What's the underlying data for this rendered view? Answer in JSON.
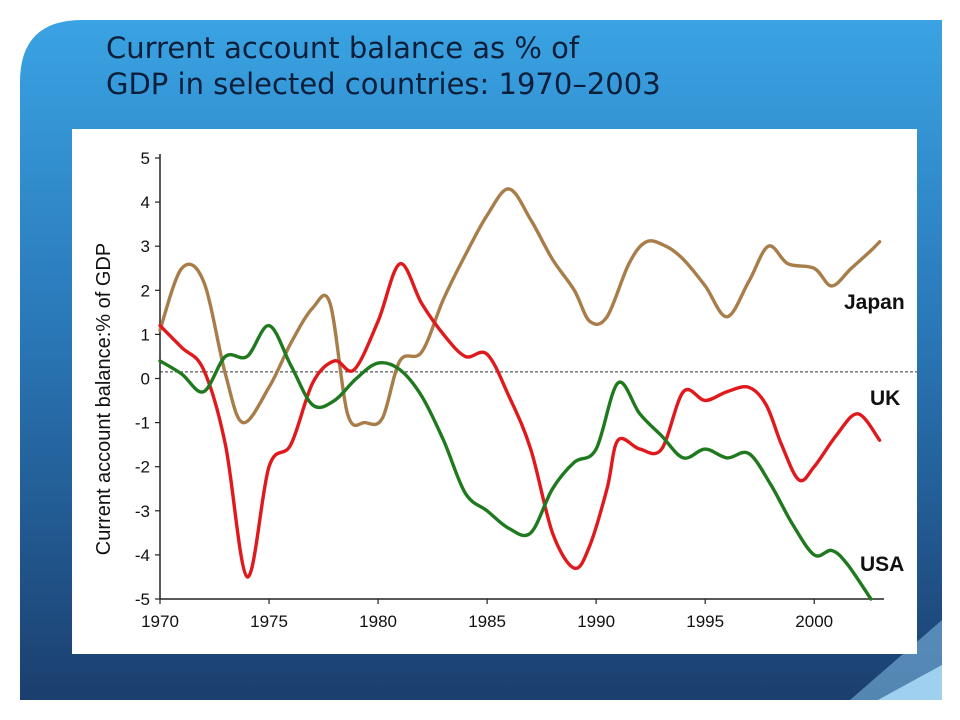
{
  "slide": {
    "title_line1": "Current account balance as % of",
    "title_line2": "GDP in selected countries: 1970–2003"
  },
  "colors": {
    "Japan": "#a87d4a",
    "UK": "#e0191c",
    "USA": "#1f7a1f",
    "slide_light": "#3aa3e3",
    "slide_dark": "#1b3f6e"
  },
  "chart_data": {
    "type": "line",
    "ylabel": "Current account balance:% of GDP",
    "xlabel": "",
    "xlim": [
      1970,
      2003.2
    ],
    "ylim": [
      -5,
      5
    ],
    "x_ticks": [
      1970,
      1975,
      1980,
      1985,
      1990,
      1995,
      2000
    ],
    "y_ticks": [
      5,
      4,
      3,
      2,
      1,
      0,
      -1,
      -2,
      -3,
      -4,
      -5
    ],
    "reference_line": 0.15,
    "grid": false,
    "legend": "inline labels at right",
    "series": [
      {
        "name": "Japan",
        "x": [
          1970,
          1971,
          1972,
          1973,
          1973.8,
          1975,
          1976,
          1977,
          1977.8,
          1978.6,
          1979.4,
          1980.2,
          1981,
          1982,
          1983,
          1984,
          1985,
          1986,
          1987,
          1988,
          1989,
          1989.7,
          1990.5,
          1991.5,
          1992.3,
          1993.2,
          1994,
          1995,
          1996,
          1997,
          1997.9,
          1998.8,
          2000,
          2000.8,
          2001.7,
          2002.6,
          2003
        ],
        "y": [
          1.1,
          2.5,
          2.2,
          0.1,
          -1.0,
          -0.2,
          0.8,
          1.6,
          1.7,
          -0.8,
          -1.0,
          -0.9,
          0.4,
          0.6,
          1.8,
          2.8,
          3.7,
          4.3,
          3.6,
          2.7,
          2.0,
          1.3,
          1.4,
          2.6,
          3.1,
          3.0,
          2.7,
          2.1,
          1.4,
          2.2,
          3.0,
          2.6,
          2.5,
          2.1,
          2.5,
          2.9,
          3.1
        ]
      },
      {
        "name": "UK",
        "x": [
          1970,
          1971,
          1972,
          1973,
          1974,
          1975,
          1976,
          1977,
          1978,
          1978.9,
          1980,
          1981,
          1982,
          1983,
          1984,
          1985,
          1986,
          1987,
          1988,
          1989,
          1989.7,
          1990.5,
          1991,
          1992,
          1993,
          1994,
          1995,
          1996,
          1997,
          1997.8,
          1998.5,
          1999.3,
          2000,
          2001,
          2002,
          2003
        ],
        "y": [
          1.2,
          0.7,
          0.2,
          -1.5,
          -4.5,
          -2.0,
          -1.5,
          -0.1,
          0.4,
          0.2,
          1.3,
          2.6,
          1.7,
          1.0,
          0.5,
          0.55,
          -0.4,
          -1.6,
          -3.5,
          -4.3,
          -3.8,
          -2.5,
          -1.4,
          -1.6,
          -1.6,
          -0.3,
          -0.5,
          -0.3,
          -0.2,
          -0.6,
          -1.5,
          -2.3,
          -2.0,
          -1.3,
          -0.8,
          -1.4
        ]
      },
      {
        "name": "USA",
        "x": [
          1970,
          1971,
          1972,
          1973,
          1974,
          1975,
          1976,
          1977,
          1978,
          1979,
          1980,
          1981,
          1982,
          1983,
          1984,
          1985,
          1986,
          1987,
          1988,
          1989,
          1990,
          1991,
          1992,
          1993,
          1994,
          1995,
          1996,
          1997,
          1998,
          1999,
          2000,
          2000.8,
          2001.5,
          2002.6
        ],
        "y": [
          0.4,
          0.1,
          -0.3,
          0.5,
          0.5,
          1.2,
          0.3,
          -0.6,
          -0.5,
          0.0,
          0.35,
          0.2,
          -0.4,
          -1.4,
          -2.6,
          -3.0,
          -3.4,
          -3.5,
          -2.5,
          -1.9,
          -1.6,
          -0.1,
          -0.8,
          -1.3,
          -1.8,
          -1.6,
          -1.8,
          -1.7,
          -2.4,
          -3.3,
          -4.0,
          -3.9,
          -4.2,
          -5.0
        ]
      }
    ],
    "annotations": [
      {
        "text": "Japan",
        "series": "Japan"
      },
      {
        "text": "UK",
        "series": "UK"
      },
      {
        "text": "USA",
        "series": "USA"
      }
    ]
  }
}
